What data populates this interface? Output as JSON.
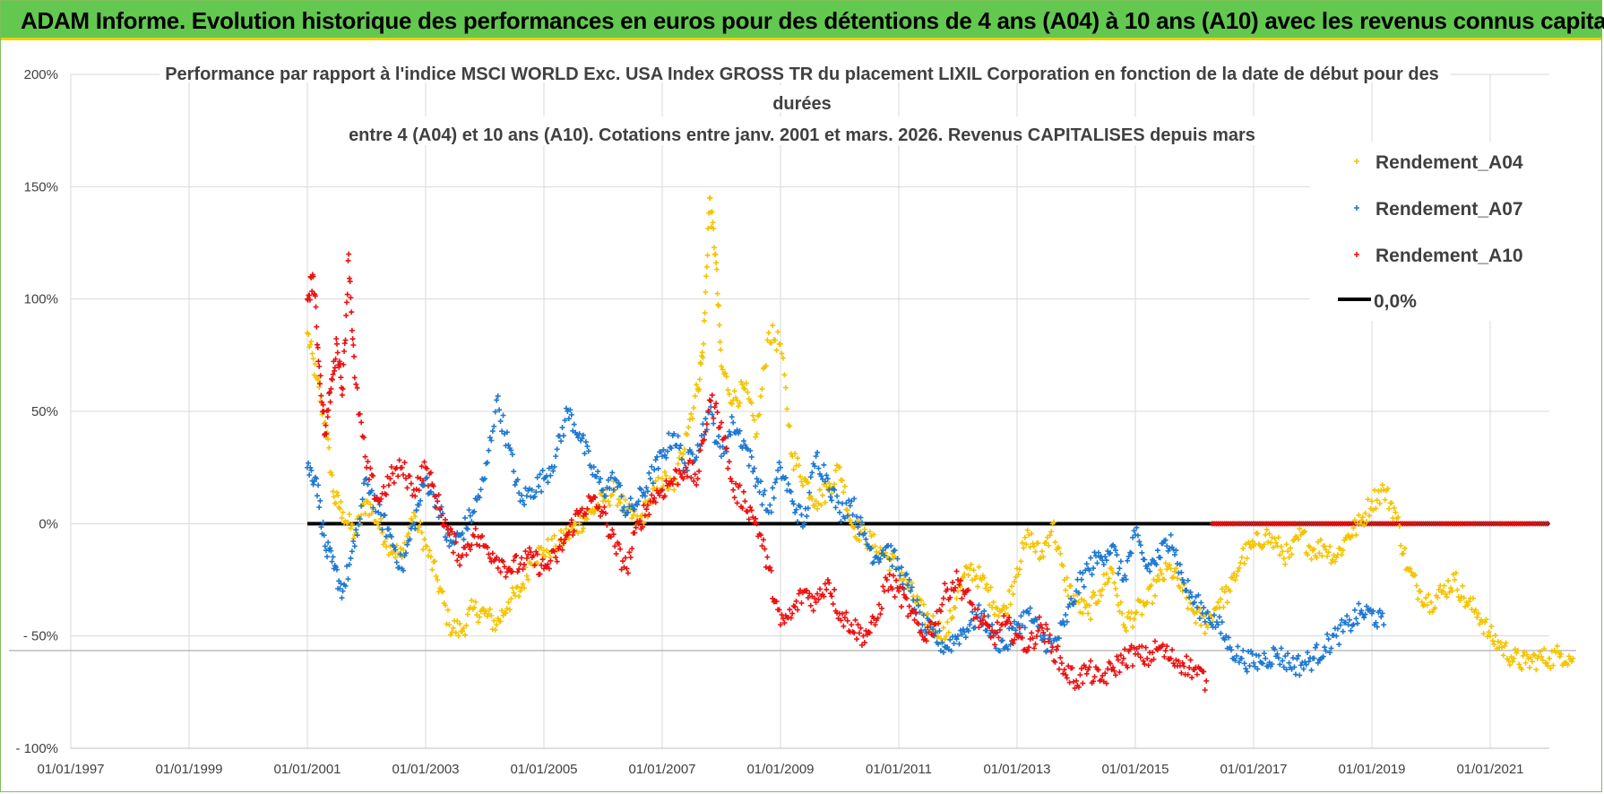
{
  "banner": {
    "title": "ADAM Informe. Evolution historique des performances en euros pour des détentions de 4 ans (A04) à 10 ans (A10) avec les revenus connus capitalisés"
  },
  "colors": {
    "banner_bg": "#63c850",
    "banner_border": "#f0d000",
    "A04": "#f5c400",
    "A07": "#1f78d1",
    "A10": "#ee1010",
    "zero_line": "#000000",
    "grid": "#d9d9d9",
    "text": "#404040"
  },
  "chart_data": {
    "type": "scatter",
    "title_lines": [
      "Performance par rapport à l'indice MSCI WORLD Exc. USA Index GROSS TR  du placement LIXIL Corporation en fonction de la date de début pour des",
      "durées",
      "entre 4 (A04) et 10 ans (A10). Cotations entre janv. 2001 et mars. 2026. Revenus CAPITALISES depuis mars"
    ],
    "xlim": [
      1997.0,
      2022.0
    ],
    "ylim": [
      -100,
      200
    ],
    "y_ticks": [
      {
        "value": 200,
        "label": "200%"
      },
      {
        "value": 150,
        "label": "150%"
      },
      {
        "value": 100,
        "label": "100%"
      },
      {
        "value": 50,
        "label": "50%"
      },
      {
        "value": 0,
        "label": "0%"
      },
      {
        "value": -50,
        "label": "- 50%"
      },
      {
        "value": -100,
        "label": "- 100%"
      }
    ],
    "x_ticks": [
      {
        "value": 1997.0,
        "label": "01/01/1997"
      },
      {
        "value": 1999.0,
        "label": "01/01/1999"
      },
      {
        "value": 2001.0,
        "label": "01/01/2001"
      },
      {
        "value": 2003.0,
        "label": "01/01/2003"
      },
      {
        "value": 2005.0,
        "label": "01/01/2005"
      },
      {
        "value": 2007.0,
        "label": "01/01/2007"
      },
      {
        "value": 2009.0,
        "label": "01/01/2009"
      },
      {
        "value": 2011.0,
        "label": "01/01/2011"
      },
      {
        "value": 2013.0,
        "label": "01/01/2013"
      },
      {
        "value": 2015.0,
        "label": "01/01/2015"
      },
      {
        "value": 2017.0,
        "label": "01/01/2017"
      },
      {
        "value": 2019.0,
        "label": "01/01/2019"
      },
      {
        "value": 2021.0,
        "label": "01/01/2021"
      }
    ],
    "legend_position": "top-right",
    "series": [
      {
        "name": "Rendement_A04",
        "color_key": "A04",
        "x": [
          2001.0,
          2001.15,
          2001.3,
          2001.45,
          2001.6,
          2001.8,
          2002.0,
          2002.2,
          2002.4,
          2002.6,
          2002.8,
          2003.0,
          2003.2,
          2003.4,
          2003.6,
          2003.8,
          2004.0,
          2004.2,
          2004.4,
          2004.6,
          2004.8,
          2005.0,
          2005.2,
          2005.4,
          2005.6,
          2005.8,
          2006.0,
          2006.2,
          2006.4,
          2006.6,
          2006.8,
          2007.0,
          2007.2,
          2007.4,
          2007.6,
          2007.7,
          2007.8,
          2007.9,
          2008.0,
          2008.2,
          2008.4,
          2008.6,
          2008.8,
          2009.0,
          2009.2,
          2009.4,
          2009.6,
          2009.8,
          2010.0,
          2010.2,
          2010.4,
          2010.6,
          2010.8,
          2011.0,
          2011.2,
          2011.4,
          2011.6,
          2011.8,
          2012.0,
          2012.2,
          2012.4,
          2012.6,
          2012.8,
          2013.0,
          2013.2,
          2013.4,
          2013.6,
          2013.8,
          2014.0,
          2014.2,
          2014.4,
          2014.6,
          2014.8,
          2015.0,
          2015.2,
          2015.4,
          2015.6,
          2015.8,
          2016.0,
          2016.2,
          2016.4,
          2016.6,
          2016.8,
          2017.0,
          2017.2,
          2017.4,
          2017.6,
          2017.8,
          2018.0,
          2018.2,
          2018.4,
          2018.6,
          2018.8,
          2019.0,
          2019.2,
          2019.4,
          2019.6,
          2019.8,
          2020.0,
          2020.2,
          2020.4,
          2020.6,
          2020.8,
          2021.0,
          2021.2,
          2021.4,
          2021.6,
          2021.8,
          2022.0,
          2022.2,
          2022.4
        ],
        "y": [
          85,
          65,
          45,
          12,
          5,
          -5,
          10,
          0,
          -10,
          -15,
          5,
          -10,
          -25,
          -45,
          -48,
          -38,
          -40,
          -45,
          -35,
          -30,
          -15,
          -12,
          -10,
          -5,
          0,
          5,
          10,
          15,
          5,
          0,
          10,
          20,
          15,
          40,
          60,
          80,
          145,
          120,
          70,
          55,
          60,
          40,
          85,
          80,
          30,
          20,
          10,
          15,
          25,
          0,
          -5,
          -10,
          -15,
          -20,
          -30,
          -40,
          -45,
          -50,
          -30,
          -20,
          -25,
          -35,
          -40,
          -20,
          -5,
          -15,
          0,
          -25,
          -35,
          -40,
          -30,
          -20,
          -45,
          -40,
          -35,
          -25,
          -20,
          -30,
          -40,
          -45,
          -35,
          -30,
          -15,
          -10,
          -5,
          -10,
          -15,
          -5,
          -12,
          -10,
          -15,
          -5,
          0,
          10,
          15,
          5,
          -20,
          -30,
          -35,
          -30,
          -25,
          -35,
          -40,
          -50,
          -55,
          -60,
          -62,
          -60,
          -60,
          -58,
          -60
        ]
      },
      {
        "name": "Rendement_A07",
        "color_key": "A07",
        "x": [
          2001.0,
          2001.15,
          2001.3,
          2001.45,
          2001.6,
          2001.8,
          2002.0,
          2002.2,
          2002.4,
          2002.6,
          2002.8,
          2003.0,
          2003.2,
          2003.4,
          2003.6,
          2003.8,
          2004.0,
          2004.2,
          2004.4,
          2004.6,
          2004.8,
          2005.0,
          2005.2,
          2005.4,
          2005.6,
          2005.8,
          2006.0,
          2006.2,
          2006.4,
          2006.6,
          2006.8,
          2007.0,
          2007.2,
          2007.4,
          2007.6,
          2007.8,
          2008.0,
          2008.2,
          2008.4,
          2008.6,
          2008.8,
          2009.0,
          2009.2,
          2009.4,
          2009.6,
          2009.8,
          2010.0,
          2010.2,
          2010.4,
          2010.6,
          2010.8,
          2011.0,
          2011.2,
          2011.4,
          2011.6,
          2011.8,
          2012.0,
          2012.2,
          2012.4,
          2012.6,
          2012.8,
          2013.0,
          2013.2,
          2013.4,
          2013.6,
          2013.8,
          2014.0,
          2014.2,
          2014.4,
          2014.6,
          2014.8,
          2015.0,
          2015.2,
          2015.4,
          2015.6,
          2015.8,
          2016.0,
          2016.2,
          2016.4,
          2016.6,
          2016.8,
          2017.0,
          2017.2,
          2017.4,
          2017.6,
          2017.8,
          2018.0,
          2018.2,
          2018.4,
          2018.6,
          2018.8,
          2019.0,
          2019.2
        ],
        "y": [
          25,
          20,
          -10,
          -20,
          -30,
          -10,
          20,
          5,
          -5,
          -20,
          0,
          20,
          10,
          -10,
          -5,
          5,
          20,
          55,
          35,
          10,
          15,
          20,
          30,
          50,
          40,
          25,
          15,
          20,
          5,
          10,
          20,
          30,
          40,
          25,
          35,
          50,
          30,
          45,
          35,
          20,
          5,
          25,
          10,
          0,
          30,
          20,
          5,
          10,
          -5,
          -15,
          -10,
          -20,
          -30,
          -45,
          -50,
          -55,
          -50,
          -45,
          -40,
          -50,
          -55,
          -45,
          -40,
          -50,
          -55,
          -45,
          -30,
          -20,
          -15,
          -10,
          -25,
          -5,
          -20,
          -15,
          -5,
          -25,
          -35,
          -40,
          -45,
          -55,
          -60,
          -62,
          -60,
          -58,
          -62,
          -63,
          -60,
          -55,
          -50,
          -45,
          -40,
          -40,
          -45
        ]
      },
      {
        "name": "Rendement_A10",
        "color_key": "A10",
        "x": [
          2001.0,
          2001.1,
          2001.2,
          2001.3,
          2001.4,
          2001.5,
          2001.6,
          2001.7,
          2001.8,
          2002.0,
          2002.2,
          2002.4,
          2002.6,
          2002.8,
          2003.0,
          2003.2,
          2003.4,
          2003.6,
          2003.8,
          2004.0,
          2004.2,
          2004.4,
          2004.6,
          2004.8,
          2005.0,
          2005.2,
          2005.4,
          2005.6,
          2005.8,
          2006.0,
          2006.2,
          2006.4,
          2006.6,
          2006.8,
          2007.0,
          2007.2,
          2007.4,
          2007.6,
          2007.8,
          2008.0,
          2008.2,
          2008.4,
          2008.6,
          2008.8,
          2009.0,
          2009.2,
          2009.4,
          2009.6,
          2009.8,
          2010.0,
          2010.2,
          2010.4,
          2010.6,
          2010.8,
          2011.0,
          2011.2,
          2011.4,
          2011.6,
          2011.8,
          2012.0,
          2012.2,
          2012.4,
          2012.6,
          2012.8,
          2013.0,
          2013.2,
          2013.4,
          2013.6,
          2013.8,
          2014.0,
          2014.2,
          2014.4,
          2014.6,
          2014.8,
          2015.0,
          2015.2,
          2015.4,
          2015.6,
          2015.8,
          2016.0,
          2016.2
        ],
        "y": [
          100,
          110,
          70,
          40,
          60,
          80,
          60,
          120,
          65,
          25,
          10,
          20,
          25,
          15,
          25,
          10,
          -5,
          -15,
          -5,
          -10,
          -15,
          -20,
          -18,
          -15,
          -20,
          -15,
          -5,
          5,
          10,
          5,
          -10,
          -20,
          0,
          10,
          15,
          20,
          25,
          20,
          55,
          45,
          15,
          10,
          0,
          -20,
          -45,
          -40,
          -30,
          -35,
          -25,
          -40,
          -45,
          -50,
          -45,
          -25,
          -30,
          -40,
          -50,
          -45,
          -30,
          -25,
          -35,
          -45,
          -50,
          -45,
          -50,
          -55,
          -45,
          -55,
          -65,
          -70,
          -65,
          -70,
          -65,
          -60,
          -58,
          -60,
          -55,
          -60,
          -62,
          -65,
          -70
        ]
      },
      {
        "name": "0,0%",
        "color_key": "zero_line",
        "x": [
          2001.0,
          2022.0
        ],
        "y": [
          0,
          0
        ]
      }
    ],
    "zero_red_band": {
      "x_start": 2016.3,
      "x_end": 2022.0,
      "y": 0
    }
  }
}
